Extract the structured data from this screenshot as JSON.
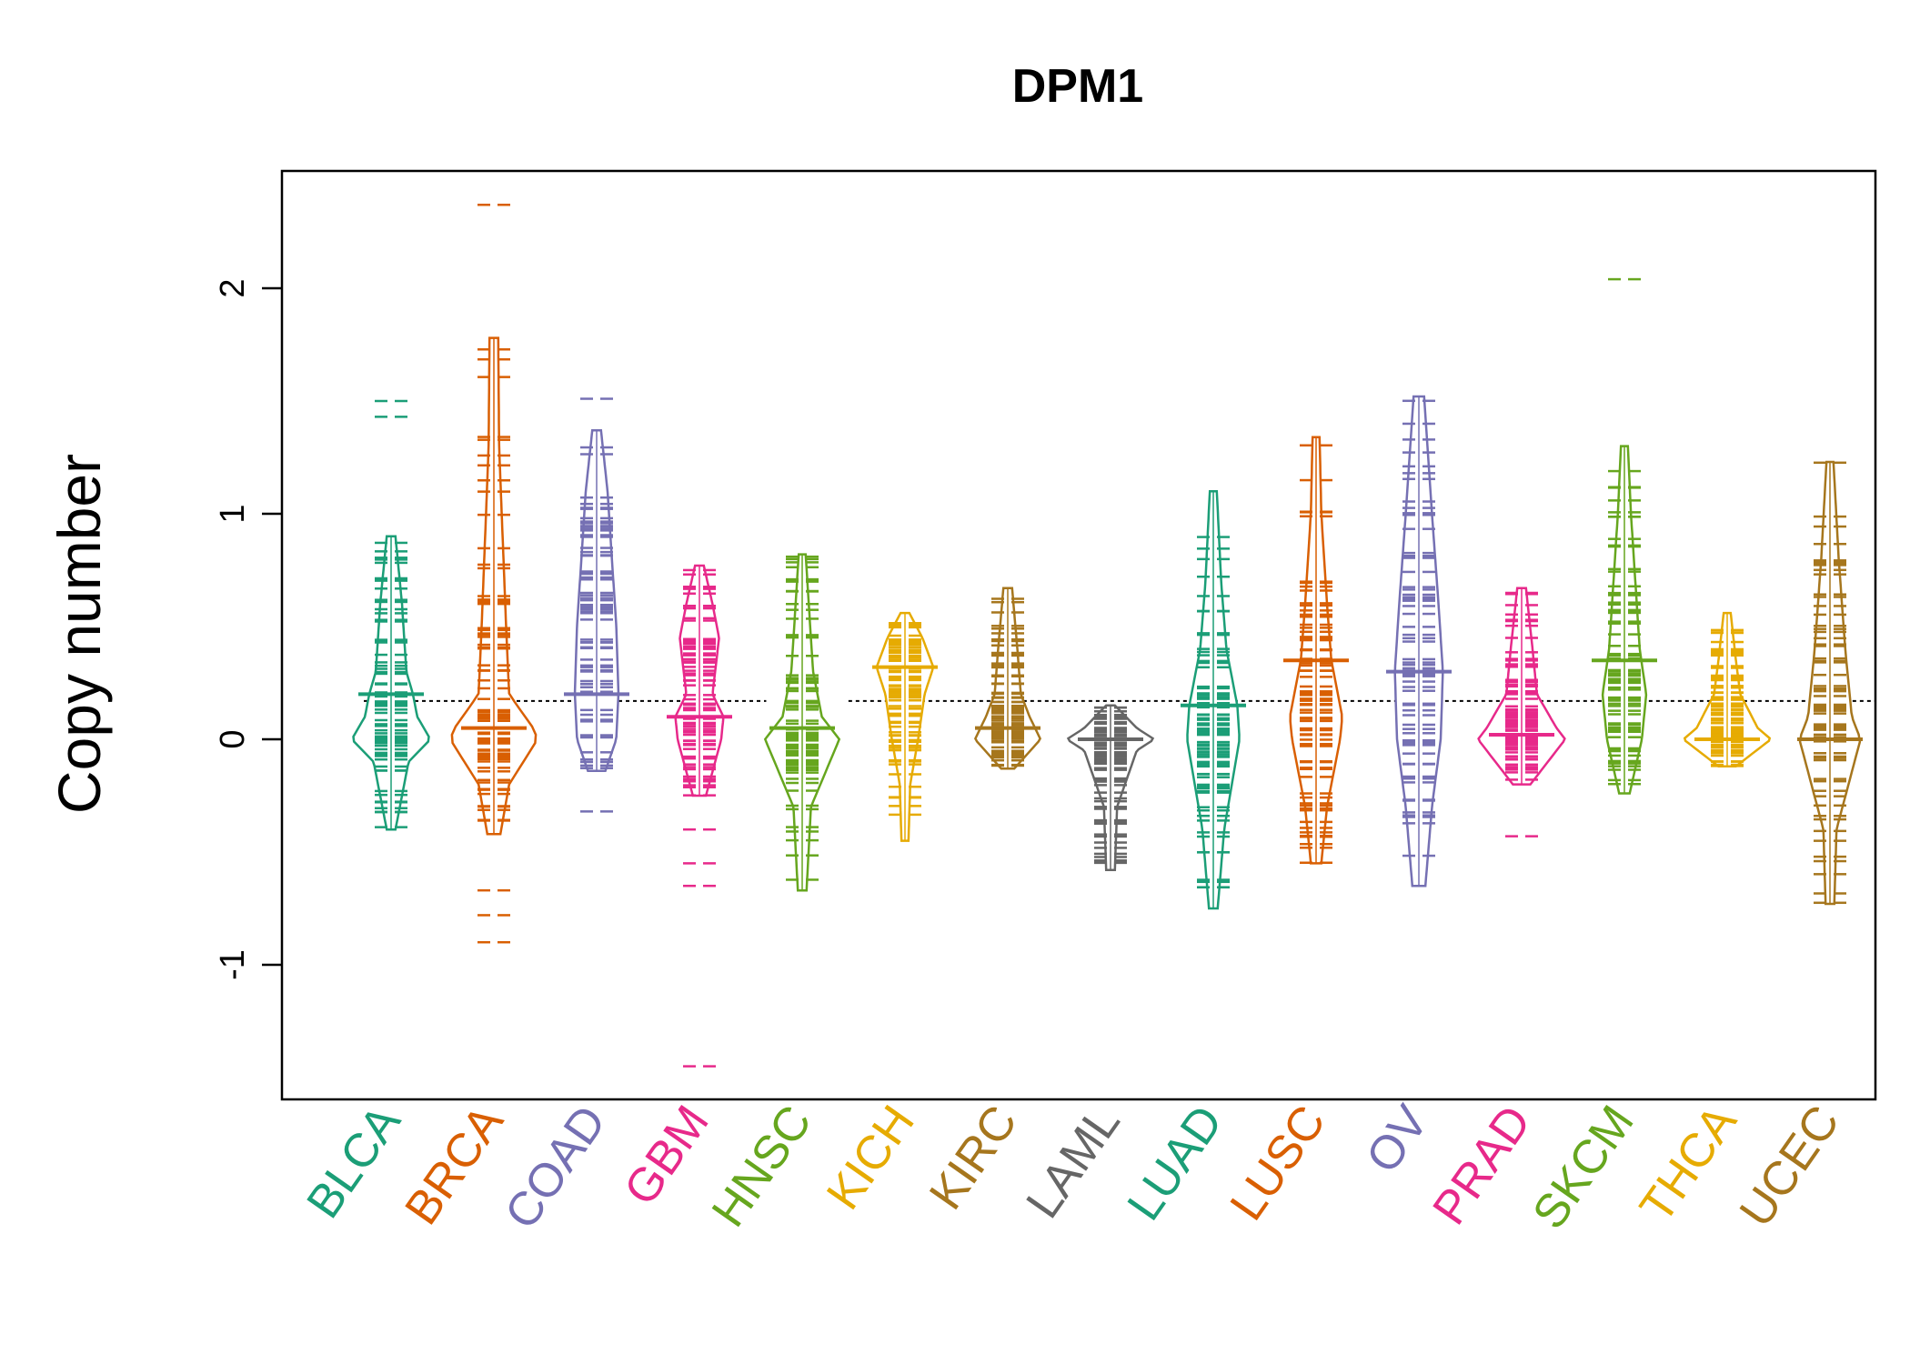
{
  "chart_data": {
    "type": "beanplot",
    "title": "DPM1",
    "xlabel": "",
    "ylabel": "Copy number",
    "ylim": [
      -1.6,
      2.5
    ],
    "yticks": [
      -1,
      0,
      1,
      2
    ],
    "ytick_labels": [
      "-1",
      "0",
      "1",
      "2"
    ],
    "reference_line": 0.17,
    "grid": false,
    "legend": "none",
    "categories": [
      {
        "name": "BLCA",
        "color": "#1B9E77",
        "min": -0.4,
        "max": 0.9,
        "median": 0.2,
        "outliers": [
          1.43,
          1.5
        ],
        "density": [
          [
            -0.4,
            0.1
          ],
          [
            -0.1,
            0.4
          ],
          [
            0.0,
            0.9
          ],
          [
            0.1,
            0.6
          ],
          [
            0.2,
            0.5
          ],
          [
            0.3,
            0.35
          ],
          [
            0.6,
            0.25
          ],
          [
            0.9,
            0.1
          ]
        ]
      },
      {
        "name": "BRCA",
        "color": "#D95F02",
        "min": -0.42,
        "max": 1.78,
        "median": 0.05,
        "outliers": [
          -0.9,
          -0.78,
          -0.67,
          2.37
        ],
        "density": [
          [
            -0.42,
            0.15
          ],
          [
            -0.2,
            0.35
          ],
          [
            0.0,
            1.0
          ],
          [
            0.05,
            0.9
          ],
          [
            0.2,
            0.35
          ],
          [
            0.5,
            0.28
          ],
          [
            0.9,
            0.2
          ],
          [
            1.3,
            0.12
          ],
          [
            1.78,
            0.1
          ]
        ]
      },
      {
        "name": "COAD",
        "color": "#7570B3",
        "min": -0.14,
        "max": 1.37,
        "median": 0.2,
        "outliers": [
          -0.32,
          1.51
        ],
        "density": [
          [
            -0.14,
            0.2
          ],
          [
            0.0,
            0.45
          ],
          [
            0.2,
            0.5
          ],
          [
            0.5,
            0.45
          ],
          [
            0.8,
            0.35
          ],
          [
            1.1,
            0.25
          ],
          [
            1.37,
            0.1
          ]
        ]
      },
      {
        "name": "GBM",
        "color": "#E7298A",
        "min": -0.25,
        "max": 0.77,
        "median": 0.1,
        "outliers": [
          -1.45,
          -0.65,
          -0.55,
          -0.4
        ],
        "density": [
          [
            -0.25,
            0.15
          ],
          [
            0.0,
            0.5
          ],
          [
            0.1,
            0.55
          ],
          [
            0.2,
            0.3
          ],
          [
            0.45,
            0.45
          ],
          [
            0.6,
            0.3
          ],
          [
            0.77,
            0.1
          ]
        ]
      },
      {
        "name": "HNSC",
        "color": "#66A61E",
        "min": -0.67,
        "max": 0.82,
        "median": 0.05,
        "outliers": [],
        "density": [
          [
            -0.67,
            0.1
          ],
          [
            -0.3,
            0.2
          ],
          [
            0.0,
            0.85
          ],
          [
            0.1,
            0.45
          ],
          [
            0.3,
            0.25
          ],
          [
            0.6,
            0.15
          ],
          [
            0.82,
            0.08
          ]
        ]
      },
      {
        "name": "KICH",
        "color": "#E6AB02",
        "min": -0.45,
        "max": 0.56,
        "median": 0.32,
        "outliers": [],
        "density": [
          [
            -0.45,
            0.08
          ],
          [
            -0.2,
            0.12
          ],
          [
            0.0,
            0.3
          ],
          [
            0.2,
            0.45
          ],
          [
            0.32,
            0.65
          ],
          [
            0.45,
            0.4
          ],
          [
            0.56,
            0.1
          ]
        ]
      },
      {
        "name": "KIRC",
        "color": "#A6761D",
        "min": -0.13,
        "max": 0.67,
        "median": 0.05,
        "outliers": [],
        "density": [
          [
            -0.13,
            0.15
          ],
          [
            0.0,
            0.75
          ],
          [
            0.1,
            0.5
          ],
          [
            0.2,
            0.3
          ],
          [
            0.4,
            0.22
          ],
          [
            0.67,
            0.1
          ]
        ]
      },
      {
        "name": "LAML",
        "color": "#666666",
        "min": -0.58,
        "max": 0.15,
        "median": 0.0,
        "outliers": [],
        "density": [
          [
            -0.58,
            0.1
          ],
          [
            -0.3,
            0.15
          ],
          [
            -0.05,
            0.6
          ],
          [
            0.0,
            1.0
          ],
          [
            0.05,
            0.6
          ],
          [
            0.15,
            0.1
          ]
        ]
      },
      {
        "name": "LUAD",
        "color": "#1B9E77",
        "min": -0.75,
        "max": 1.1,
        "median": 0.15,
        "outliers": [],
        "density": [
          [
            -0.75,
            0.1
          ],
          [
            -0.4,
            0.25
          ],
          [
            0.0,
            0.6
          ],
          [
            0.15,
            0.55
          ],
          [
            0.4,
            0.3
          ],
          [
            0.7,
            0.18
          ],
          [
            1.1,
            0.08
          ]
        ]
      },
      {
        "name": "LUSC",
        "color": "#D95F02",
        "min": -0.55,
        "max": 1.34,
        "median": 0.35,
        "outliers": [],
        "density": [
          [
            -0.55,
            0.12
          ],
          [
            -0.3,
            0.25
          ],
          [
            0.0,
            0.55
          ],
          [
            0.1,
            0.6
          ],
          [
            0.35,
            0.35
          ],
          [
            0.6,
            0.25
          ],
          [
            1.0,
            0.12
          ],
          [
            1.34,
            0.08
          ]
        ]
      },
      {
        "name": "OV",
        "color": "#7570B3",
        "min": -0.65,
        "max": 1.52,
        "median": 0.3,
        "outliers": [],
        "density": [
          [
            -0.65,
            0.15
          ],
          [
            -0.3,
            0.3
          ],
          [
            0.0,
            0.5
          ],
          [
            0.3,
            0.55
          ],
          [
            0.6,
            0.45
          ],
          [
            1.0,
            0.3
          ],
          [
            1.52,
            0.12
          ]
        ]
      },
      {
        "name": "PRAD",
        "color": "#E7298A",
        "min": -0.2,
        "max": 0.67,
        "median": 0.02,
        "outliers": [
          -0.43
        ],
        "density": [
          [
            -0.2,
            0.2
          ],
          [
            0.0,
            1.0
          ],
          [
            0.05,
            0.8
          ],
          [
            0.2,
            0.35
          ],
          [
            0.4,
            0.25
          ],
          [
            0.67,
            0.1
          ]
        ]
      },
      {
        "name": "SKCM",
        "color": "#66A61E",
        "min": -0.24,
        "max": 1.3,
        "median": 0.35,
        "outliers": [
          2.04
        ],
        "density": [
          [
            -0.24,
            0.12
          ],
          [
            0.0,
            0.4
          ],
          [
            0.2,
            0.5
          ],
          [
            0.4,
            0.35
          ],
          [
            0.7,
            0.25
          ],
          [
            1.0,
            0.15
          ],
          [
            1.3,
            0.08
          ]
        ]
      },
      {
        "name": "THCA",
        "color": "#E6AB02",
        "min": -0.12,
        "max": 0.56,
        "median": 0.0,
        "outliers": [],
        "density": [
          [
            -0.12,
            0.2
          ],
          [
            0.0,
            1.0
          ],
          [
            0.05,
            0.7
          ],
          [
            0.2,
            0.3
          ],
          [
            0.35,
            0.2
          ],
          [
            0.56,
            0.08
          ]
        ]
      },
      {
        "name": "UCEC",
        "color": "#A6761D",
        "min": -0.73,
        "max": 1.23,
        "median": 0.0,
        "outliers": [],
        "density": [
          [
            -0.73,
            0.1
          ],
          [
            -0.4,
            0.15
          ],
          [
            0.0,
            0.7
          ],
          [
            0.1,
            0.5
          ],
          [
            0.4,
            0.35
          ],
          [
            0.8,
            0.2
          ],
          [
            1.23,
            0.08
          ]
        ]
      }
    ]
  }
}
